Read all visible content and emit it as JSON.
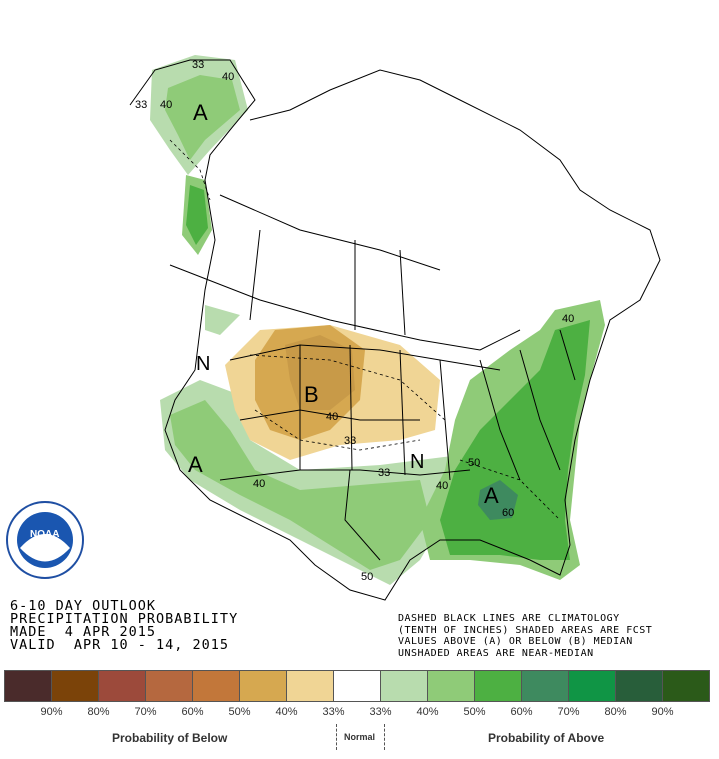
{
  "outlook": {
    "title_line1": "6-10 DAY OUTLOOK",
    "title_line2": "PRECIPITATION PROBABILITY",
    "made": "MADE  4 APR 2015",
    "valid": "VALID  APR 10 - 14, 2015"
  },
  "notes": {
    "line1": "DASHED BLACK LINES ARE CLIMATOLOGY",
    "line2": "(TENTH OF INCHES) SHADED AREAS ARE FCST",
    "line3": "VALUES ABOVE (A) OR BELOW (B) MEDIAN",
    "line4": "UNSHADED AREAS ARE NEAR-MEDIAN"
  },
  "logo": {
    "name": "noda-logo",
    "text": "NOAA"
  },
  "map_labels": {
    "a_alaska": "A",
    "a_southwest": "A",
    "a_southeast": "A",
    "b_plains": "B",
    "n_northwest": "N",
    "n_central": "N",
    "c33_ak1": "33",
    "c40_ak1": "40",
    "c33_ak2": "33",
    "c40_ak2": "40",
    "c40_ne": "40",
    "c40_plains": "40",
    "c33_plains": "33",
    "c33_south": "33",
    "c40_texas": "40",
    "c40_se": "40",
    "c50_se": "50",
    "c60_se": "60",
    "c50_tx": "50"
  },
  "legend": {
    "colors": [
      "#4a2b2b",
      "#7b4309",
      "#9c4a3b",
      "#b5683f",
      "#c2773a",
      "#d6a850",
      "#f0d595",
      "#ffffff",
      "#b8dcae",
      "#8fcb78",
      "#4db042",
      "#3e8a5f",
      "#109545",
      "#285e3a",
      "#2b5a19"
    ],
    "percents": [
      "90%",
      "80%",
      "70%",
      "60%",
      "50%",
      "40%",
      "33%",
      "33%",
      "40%",
      "50%",
      "60%",
      "70%",
      "80%",
      "90%"
    ],
    "below_label": "Probability of Below",
    "normal_label": "Normal",
    "above_label": "Probability of Above"
  }
}
